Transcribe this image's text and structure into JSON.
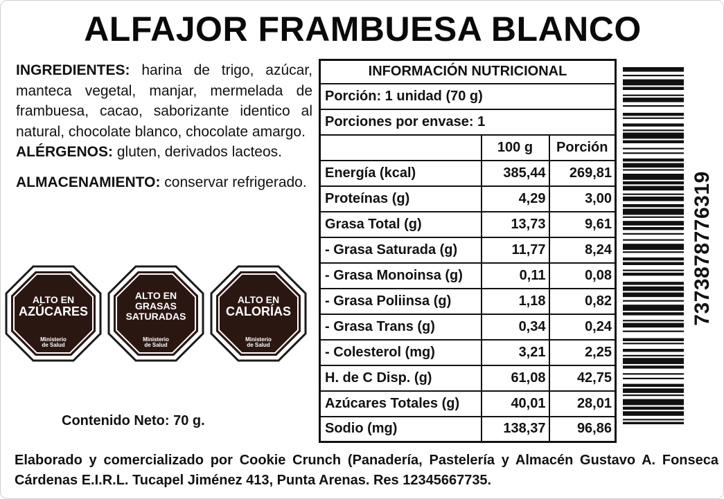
{
  "title": "ALFAJOR FRAMBUESA BLANCO",
  "ingredients": {
    "label": "INGREDIENTES:",
    "text": " harina de trigo, azúcar, manteca vegetal, manjar, mermelada de frambuesa, cacao, saborizante identico al natural, chocolate blanco, chocolate amargo."
  },
  "allergens": {
    "label": "ALÉRGENOS:",
    "text": " gluten, derivados lacteos."
  },
  "storage": {
    "label": "ALMACENAMIENTO:",
    "text": " conservar refrigerado."
  },
  "seals": [
    {
      "top": "ALTO EN",
      "main": "AZÚCARES",
      "foot1": "Ministerio",
      "foot2": "de Salud"
    },
    {
      "top": "ALTO EN",
      "main": "GRASAS SATURADAS",
      "foot1": "Ministerio",
      "foot2": "de Salud"
    },
    {
      "top": "ALTO EN",
      "main": "CALORÍAS",
      "foot1": "Ministerio",
      "foot2": "de Salud"
    }
  ],
  "net_content": "Contenido Neto: 70 g.",
  "nutrition": {
    "header": "INFORMACIÓN NUTRICIONAL",
    "portion": "Porción: 1 unidad (70 g)",
    "servings": "Porciones por envase: 1",
    "col_100g": "100 g",
    "col_portion": "Porción",
    "rows": [
      {
        "name": "Energía (kcal)",
        "per100": "385,44",
        "portion": "269,81"
      },
      {
        "name": "Proteínas (g)",
        "per100": "4,29",
        "portion": "3,00"
      },
      {
        "name": "Grasa Total (g)",
        "per100": "13,73",
        "portion": "9,61"
      },
      {
        "name": "- Grasa Saturada (g)",
        "per100": "11,77",
        "portion": "8,24"
      },
      {
        "name": "- Grasa Monoinsa (g)",
        "per100": "0,11",
        "portion": "0,08"
      },
      {
        "name": "- Grasa Poliinsa (g)",
        "per100": "1,18",
        "portion": "0,82"
      },
      {
        "name": "- Grasa Trans (g)",
        "per100": "0,34",
        "portion": "0,24"
      },
      {
        "name": "- Colesterol (mg)",
        "per100": "3,21",
        "portion": "2,25"
      },
      {
        "name": "H. de C Disp. (g)",
        "per100": "61,08",
        "portion": "42,75"
      },
      {
        "name": "Azúcares Totales (g)",
        "per100": "40,01",
        "portion": "28,01"
      },
      {
        "name": "Sodio (mg)",
        "per100": "138,37",
        "portion": "96,86"
      }
    ]
  },
  "barcode": {
    "digits": "7373878776319"
  },
  "footer": "Elaborado y comercializado por Cookie Crunch (Panadería, Pastelería y Almacén Gustavo A. Fonseca Cárdenas E.I.R.L. Tucapel Jiménez 413, Punta Arenas. Res 12345667735.",
  "colors": {
    "seal_fill": "#2b1712",
    "seal_ring": "#ffffff",
    "seal_border": "#1a1a1a"
  }
}
